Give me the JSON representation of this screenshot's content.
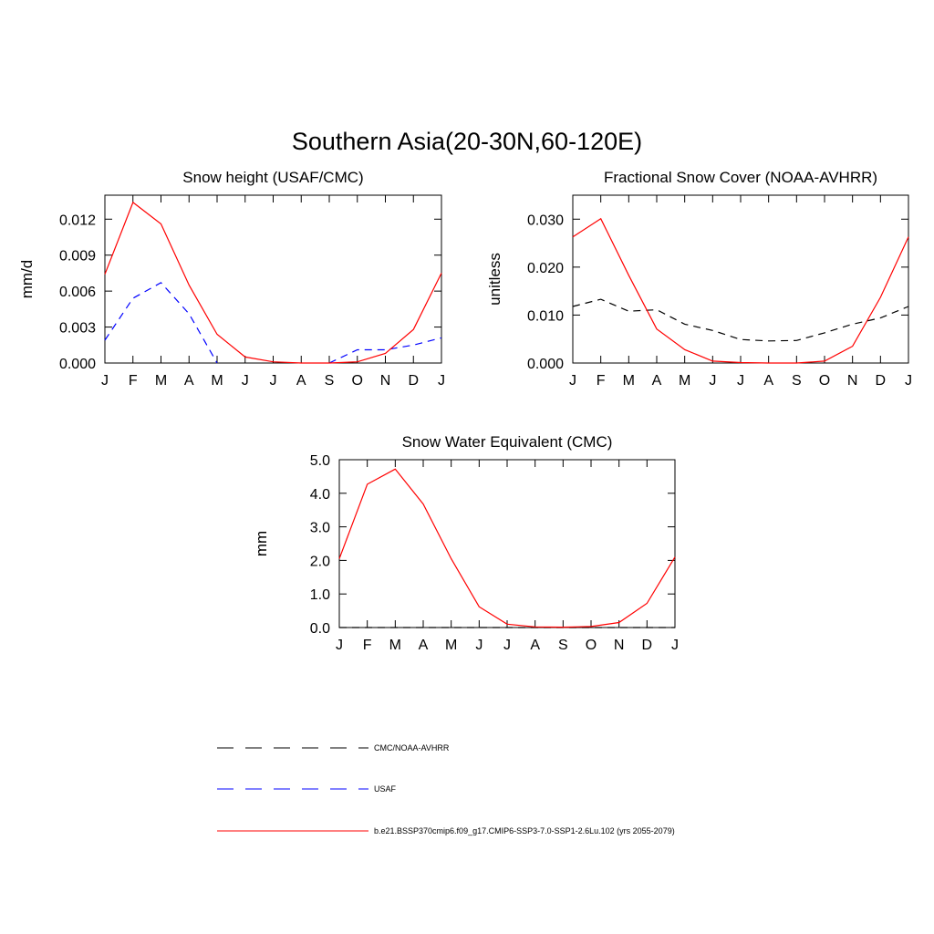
{
  "title": "Southern Asia(20-30N,60-120E)",
  "months": [
    "J",
    "F",
    "M",
    "A",
    "M",
    "J",
    "J",
    "A",
    "S",
    "O",
    "N",
    "D",
    "J"
  ],
  "chart_data": [
    {
      "type": "line",
      "title": "Snow height (USAF/CMC)",
      "xlabel": "",
      "ylabel": "mm/d",
      "ylim": [
        0,
        0.014
      ],
      "yticks": [
        0,
        0.003,
        0.006,
        0.009,
        0.012
      ],
      "ytick_labels": [
        "0.000",
        "0.003",
        "0.006",
        "0.009",
        "0.012"
      ],
      "series": [
        {
          "name": "b.e21.BSSP370cmip6.f09_g17.CMIP6-SSP3-7.0-SSP1-2.6Lu.102 (yrs 2055-2079)",
          "color": "#ff0000",
          "dash": "solid",
          "values": [
            0.0074,
            0.0134,
            0.0116,
            0.0065,
            0.0024,
            0.0005,
            0.0001,
            0.0,
            0.0,
            0.0001,
            0.0008,
            0.0028,
            0.0075
          ]
        },
        {
          "name": "USAF",
          "color": "#0000ff",
          "dash": "dashed",
          "values": [
            0.0019,
            0.0054,
            0.0067,
            0.0041,
            0.0,
            null,
            null,
            null,
            0.0,
            0.0011,
            0.0011,
            0.0015,
            0.0021
          ]
        }
      ]
    },
    {
      "type": "line",
      "title": "Fractional Snow Cover (NOAA-AVHRR)",
      "xlabel": "",
      "ylabel": "unitless",
      "ylim": [
        0,
        0.035
      ],
      "yticks": [
        0,
        0.01,
        0.02,
        0.03
      ],
      "ytick_labels": [
        "0.000",
        "0.010",
        "0.020",
        "0.030"
      ],
      "series": [
        {
          "name": "b.e21.BSSP370cmip6.f09_g17.CMIP6-SSP3-7.0-SSP1-2.6Lu.102 (yrs 2055-2079)",
          "color": "#ff0000",
          "dash": "solid",
          "values": [
            0.0263,
            0.0301,
            0.0183,
            0.0071,
            0.0028,
            0.0004,
            0.0001,
            0.0,
            0.0,
            0.0004,
            0.0035,
            0.0137,
            0.0263
          ]
        },
        {
          "name": "CMC/NOAA-AVHRR",
          "color": "#000000",
          "dash": "dashed",
          "values": [
            0.0118,
            0.0133,
            0.0108,
            0.0111,
            0.0081,
            0.0068,
            0.0049,
            0.0046,
            0.0047,
            0.0063,
            0.0081,
            0.0094,
            0.0118
          ]
        }
      ]
    },
    {
      "type": "line",
      "title": "Snow Water Equivalent (CMC)",
      "xlabel": "",
      "ylabel": "mm",
      "ylim": [
        0,
        5.0
      ],
      "yticks": [
        0,
        1,
        2,
        3,
        4,
        5
      ],
      "ytick_labels": [
        "0.0",
        "1.0",
        "2.0",
        "3.0",
        "4.0",
        "5.0"
      ],
      "series": [
        {
          "name": "b.e21.BSSP370cmip6.f09_g17.CMIP6-SSP3-7.0-SSP1-2.6Lu.102 (yrs 2055-2079)",
          "color": "#ff0000",
          "dash": "solid",
          "values": [
            2.05,
            4.27,
            4.72,
            3.68,
            2.05,
            0.62,
            0.1,
            0.02,
            0.01,
            0.03,
            0.15,
            0.72,
            2.1
          ]
        },
        {
          "name": "CMC/NOAA-AVHRR",
          "color": "#000000",
          "dash": "dashed",
          "values": [
            0,
            0,
            0,
            0,
            0,
            0,
            0,
            0,
            0,
            0,
            0,
            0,
            0
          ]
        }
      ]
    }
  ],
  "legend": [
    {
      "label": "CMC/NOAA-AVHRR",
      "color": "#000000",
      "dash": "dashed"
    },
    {
      "label": "USAF",
      "color": "#0000ff",
      "dash": "dashed"
    },
    {
      "label": "b.e21.BSSP370cmip6.f09_g17.CMIP6-SSP3-7.0-SSP1-2.6Lu.102 (yrs 2055-2079)",
      "color": "#ff0000",
      "dash": "solid"
    }
  ]
}
